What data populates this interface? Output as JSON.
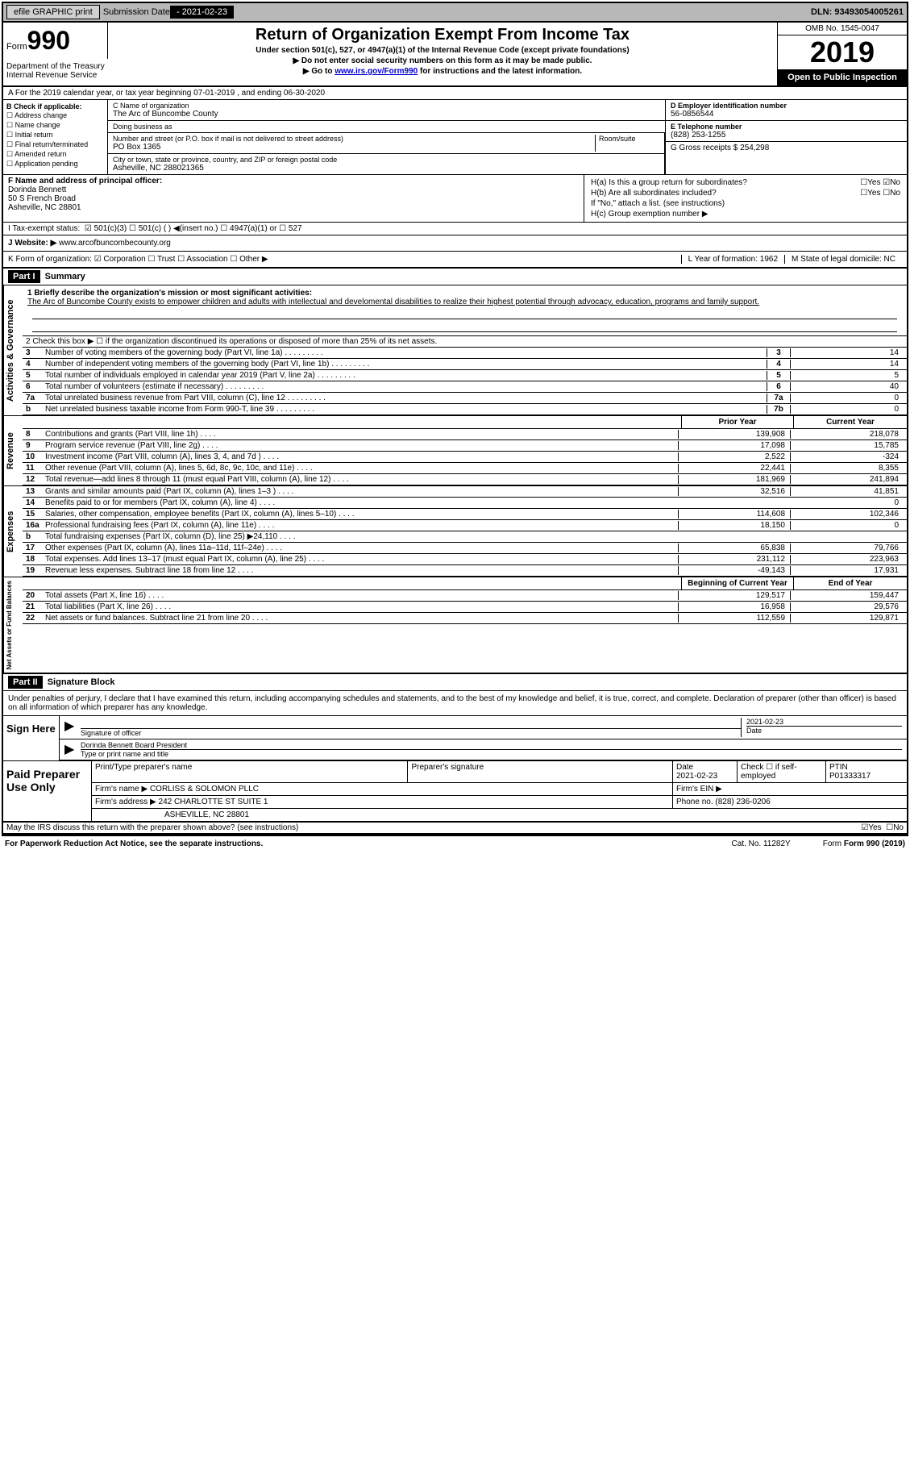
{
  "top": {
    "efile": "efile GRAPHIC print",
    "sub_lbl": "Submission Date",
    "sub_date": "- 2021-02-23",
    "dln": "DLN: 93493054005261"
  },
  "header": {
    "form_word": "Form",
    "form_num": "990",
    "dept1": "Department of the Treasury",
    "dept2": "Internal Revenue Service",
    "title": "Return of Organization Exempt From Income Tax",
    "sub1": "Under section 501(c), 527, or 4947(a)(1) of the Internal Revenue Code (except private foundations)",
    "sub2": "▶ Do not enter social security numbers on this form as it may be made public.",
    "sub3_pre": "▶ Go to ",
    "sub3_link": "www.irs.gov/Form990",
    "sub3_post": " for instructions and the latest information.",
    "omb": "OMB No. 1545-0047",
    "year": "2019",
    "open": "Open to Public Inspection"
  },
  "rowA": "A For the 2019 calendar year, or tax year beginning 07-01-2019    , and ending 06-30-2020",
  "checkB": {
    "lbl": "B Check if applicable:",
    "items": [
      "☐ Address change",
      "☐ Name change",
      "☐ Initial return",
      "☐ Final return/terminated",
      "☐ Amended return",
      "☐ Application pending"
    ]
  },
  "org": {
    "name_lbl": "C Name of organization",
    "name": "The Arc of Buncombe County",
    "dba_lbl": "Doing business as",
    "dba": "",
    "addr_lbl": "Number and street (or P.O. box if mail is not delivered to street address)",
    "addr": "PO Box 1365",
    "suite_lbl": "Room/suite",
    "city_lbl": "City or town, state or province, country, and ZIP or foreign postal code",
    "city": "Asheville, NC  288021365"
  },
  "right": {
    "ein_lbl": "D Employer identification number",
    "ein": "56-0856544",
    "tel_lbl": "E Telephone number",
    "tel": "(828) 253-1255",
    "gross_lbl": "G Gross receipts $ 254,298"
  },
  "f": {
    "lbl": "F  Name and address of principal officer:",
    "l1": "Dorinda Bennett",
    "l2": "50 S French Broad",
    "l3": "Asheville, NC  28801"
  },
  "h": {
    "a_lbl": "H(a)  Is this a group return for subordinates?",
    "a_yes": "☐Yes",
    "a_no": "☑No",
    "b_lbl": "H(b)  Are all subordinates included?",
    "b_yes": "☐Yes",
    "b_no": "☐No",
    "b_note": "If \"No,\" attach a list. (see instructions)",
    "c_lbl": "H(c)  Group exemption number ▶"
  },
  "i": {
    "lbl": "I    Tax-exempt status:",
    "opts": "☑ 501(c)(3)    ☐ 501(c) (  ) ◀(insert no.)    ☐ 4947(a)(1) or  ☐ 527"
  },
  "j": {
    "lbl": "J   Website: ▶  ",
    "val": "www.arcofbuncombecounty.org"
  },
  "k": {
    "lbl": "K Form of organization:  ☑ Corporation  ☐ Trust  ☐ Association  ☐ Other ▶",
    "l": "L Year of formation: 1962",
    "m": "M State of legal domicile: NC"
  },
  "part1": {
    "hdr": "Part I",
    "title": "Summary",
    "q1_lbl": "1  Briefly describe the organization's mission or most significant activities:",
    "q1_txt": "The Arc of Buncombe County exists to empower children and adults with intellectual and develomental disabilities to realize their highest potential through advocacy, education, programs and family support.",
    "q2": "2   Check this box ▶ ☐ if the organization discontinued its operations or disposed of more than 25% of its net assets.",
    "rows_gov": [
      {
        "n": "3",
        "l": "Number of voting members of the governing body (Part VI, line 1a)",
        "b": "3",
        "v": "14"
      },
      {
        "n": "4",
        "l": "Number of independent voting members of the governing body (Part VI, line 1b)",
        "b": "4",
        "v": "14"
      },
      {
        "n": "5",
        "l": "Total number of individuals employed in calendar year 2019 (Part V, line 2a)",
        "b": "5",
        "v": "5"
      },
      {
        "n": "6",
        "l": "Total number of volunteers (estimate if necessary)",
        "b": "6",
        "v": "40"
      },
      {
        "n": "7a",
        "l": "Total unrelated business revenue from Part VIII, column (C), line 12",
        "b": "7a",
        "v": "0"
      },
      {
        "n": "b",
        "l": "Net unrelated business taxable income from Form 990-T, line 39",
        "b": "7b",
        "v": "0"
      }
    ],
    "yrhead": {
      "p": "Prior Year",
      "c": "Current Year"
    },
    "rows_rev": [
      {
        "n": "8",
        "l": "Contributions and grants (Part VIII, line 1h)",
        "p": "139,908",
        "c": "218,078"
      },
      {
        "n": "9",
        "l": "Program service revenue (Part VIII, line 2g)",
        "p": "17,098",
        "c": "15,785"
      },
      {
        "n": "10",
        "l": "Investment income (Part VIII, column (A), lines 3, 4, and 7d )",
        "p": "2,522",
        "c": "-324"
      },
      {
        "n": "11",
        "l": "Other revenue (Part VIII, column (A), lines 5, 6d, 8c, 9c, 10c, and 11e)",
        "p": "22,441",
        "c": "8,355"
      },
      {
        "n": "12",
        "l": "Total revenue—add lines 8 through 11 (must equal Part VIII, column (A), line 12)",
        "p": "181,969",
        "c": "241,894"
      }
    ],
    "rows_exp": [
      {
        "n": "13",
        "l": "Grants and similar amounts paid (Part IX, column (A), lines 1–3 )",
        "p": "32,516",
        "c": "41,851"
      },
      {
        "n": "14",
        "l": "Benefits paid to or for members (Part IX, column (A), line 4)",
        "p": "",
        "c": "0"
      },
      {
        "n": "15",
        "l": "Salaries, other compensation, employee benefits (Part IX, column (A), lines 5–10)",
        "p": "114,608",
        "c": "102,346"
      },
      {
        "n": "16a",
        "l": "Professional fundraising fees (Part IX, column (A), line 11e)",
        "p": "18,150",
        "c": "0"
      },
      {
        "n": "b",
        "l": "Total fundraising expenses (Part IX, column (D), line 25) ▶24,110",
        "p": "shaded",
        "c": "shaded"
      },
      {
        "n": "17",
        "l": "Other expenses (Part IX, column (A), lines 11a–11d, 11f–24e)",
        "p": "65,838",
        "c": "79,766"
      },
      {
        "n": "18",
        "l": "Total expenses. Add lines 13–17 (must equal Part IX, column (A), line 25)",
        "p": "231,112",
        "c": "223,963"
      },
      {
        "n": "19",
        "l": "Revenue less expenses. Subtract line 18 from line 12",
        "p": "-49,143",
        "c": "17,931"
      }
    ],
    "yrhead2": {
      "p": "Beginning of Current Year",
      "c": "End of Year"
    },
    "rows_net": [
      {
        "n": "20",
        "l": "Total assets (Part X, line 16)",
        "p": "129,517",
        "c": "159,447"
      },
      {
        "n": "21",
        "l": "Total liabilities (Part X, line 26)",
        "p": "16,958",
        "c": "29,576"
      },
      {
        "n": "22",
        "l": "Net assets or fund balances. Subtract line 21 from line 20",
        "p": "112,559",
        "c": "129,871"
      }
    ]
  },
  "part2": {
    "hdr": "Part II",
    "title": "Signature Block",
    "decl": "Under penalties of perjury, I declare that I have examined this return, including accompanying schedules and statements, and to the best of my knowledge and belief, it is true, correct, and complete. Declaration of preparer (other than officer) is based on all information of which preparer has any knowledge."
  },
  "sign": {
    "lbl": "Sign Here",
    "sig_lbl": "Signature of officer",
    "date_lbl": "Date",
    "date": "2021-02-23",
    "name": "Dorinda Bennett  Board President",
    "name_lbl": "Type or print name and title"
  },
  "prep": {
    "lbl": "Paid Preparer Use Only",
    "r1": {
      "a": "Print/Type preparer's name",
      "b": "Preparer's signature",
      "c": "Date",
      "cv": "2021-02-23",
      "d": "Check ☐ if self-employed",
      "e": "PTIN",
      "ev": "P01333317"
    },
    "r2": {
      "a": "Firm's name     ▶ CORLISS & SOLOMON PLLC",
      "b": "Firm's EIN ▶"
    },
    "r3": {
      "a": "Firm's address ▶ 242 CHARLOTTE ST SUITE 1",
      "b": "Phone no. (828) 236-0206"
    },
    "r4": "ASHEVILLE, NC  28801",
    "q": "May the IRS discuss this return with the preparer shown above? (see instructions)",
    "yes_chk": "☑Yes",
    "no": "☐No"
  },
  "footer": {
    "l": "For Paperwork Reduction Act Notice, see the separate instructions.",
    "m": "Cat. No. 11282Y",
    "r": "Form 990 (2019)"
  },
  "vtabs": {
    "gov": "Activities & Governance",
    "rev": "Revenue",
    "exp": "Expenses",
    "net": "Net Assets or Fund Balances"
  }
}
